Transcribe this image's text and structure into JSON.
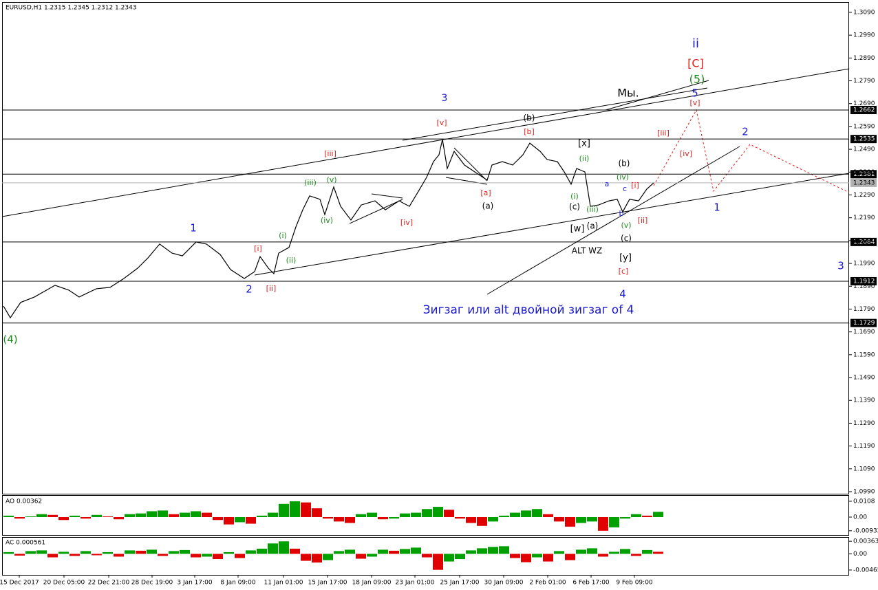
{
  "chart_data": [
    {
      "type": "line",
      "title": "EURUSD,H1  1.2315 1.2345 1.2312 1.2343",
      "color": "#000000",
      "x": [
        5,
        15,
        30,
        50,
        80,
        100,
        115,
        140,
        160,
        180,
        200,
        215,
        232,
        250,
        265,
        285,
        300,
        320,
        335,
        355,
        370,
        378,
        390,
        398,
        405,
        420,
        430,
        440,
        450,
        465,
        472,
        485,
        495,
        510,
        525,
        545,
        560,
        580,
        595,
        610,
        620,
        630,
        638,
        643,
        650,
        660,
        675,
        690,
        708,
        715,
        730,
        745,
        760,
        770,
        785,
        795,
        810,
        820,
        830,
        838,
        850,
        858,
        870,
        885,
        897,
        905,
        915,
        928,
        940,
        950
      ],
      "values": [
        1.1803,
        1.1752,
        1.1819,
        1.1843,
        1.1894,
        1.1873,
        1.1843,
        1.1879,
        1.1885,
        1.1924,
        1.1969,
        1.2014,
        1.2075,
        1.2035,
        1.2023,
        1.2084,
        1.2075,
        1.2029,
        1.1963,
        1.1924,
        1.1954,
        1.202,
        1.1969,
        1.1945,
        1.2035,
        1.206,
        1.215,
        1.2225,
        1.2286,
        1.2271,
        1.2204,
        1.2325,
        1.224,
        1.218,
        1.2246,
        1.2264,
        1.2225,
        1.2264,
        1.224,
        1.2316,
        1.2367,
        1.2436,
        1.2466,
        1.2533,
        1.2406,
        1.2481,
        1.2421,
        1.2391,
        1.2355,
        1.2421,
        1.2436,
        1.2421,
        1.2466,
        1.2517,
        1.2481,
        1.2445,
        1.2436,
        1.2391,
        1.2337,
        1.2406,
        1.2391,
        1.224,
        1.2246,
        1.2264,
        1.2271,
        1.2216,
        1.2271,
        1.2264,
        1.2316,
        1.2343
      ],
      "xlim": [
        3,
        1234
      ],
      "ylim": [
        1.0981,
        1.3135
      ],
      "yticks": [
        {
          "value": 1.309,
          "label": "1.3090"
        },
        {
          "value": 1.299,
          "label": "1.2990"
        },
        {
          "value": 1.289,
          "label": "1.2890"
        },
        {
          "value": 1.279,
          "label": "1.2790"
        },
        {
          "value": 1.269,
          "label": "1.2690"
        },
        {
          "value": 1.259,
          "label": "1.2590"
        },
        {
          "value": 1.249,
          "label": "1.2490"
        },
        {
          "value": 1.239,
          "label": "1.2390"
        },
        {
          "value": 1.229,
          "label": "1.2290"
        },
        {
          "value": 1.219,
          "label": "1.2190"
        },
        {
          "value": 1.209,
          "label": "1.2090"
        },
        {
          "value": 1.199,
          "label": "1.1990"
        },
        {
          "value": 1.189,
          "label": "1.1890"
        },
        {
          "value": 1.179,
          "label": "1.1790"
        },
        {
          "value": 1.169,
          "label": "1.1690"
        },
        {
          "value": 1.159,
          "label": "1.1590"
        },
        {
          "value": 1.149,
          "label": "1.1490"
        },
        {
          "value": 1.139,
          "label": "1.1390"
        },
        {
          "value": 1.129,
          "label": "1.1290"
        },
        {
          "value": 1.119,
          "label": "1.1190"
        },
        {
          "value": 1.109,
          "label": "1.1090"
        },
        {
          "value": 1.099,
          "label": "1.0990"
        }
      ],
      "xticks": [
        {
          "value": 28,
          "label": "15 Dec 2017"
        },
        {
          "value": 93,
          "label": "20 Dec 05:00"
        },
        {
          "value": 158,
          "label": "22 Dec 21:00"
        },
        {
          "value": 221,
          "label": "28 Dec 19:00"
        },
        {
          "value": 283,
          "label": "3 Jan 17:00"
        },
        {
          "value": 346,
          "label": "8 Jan 09:00"
        },
        {
          "value": 412,
          "label": "11 Jan 01:00"
        },
        {
          "value": 476,
          "label": "15 Jan 17:00"
        },
        {
          "value": 540,
          "label": "18 Jan 09:00"
        },
        {
          "value": 603,
          "label": "23 Jan 01:00"
        },
        {
          "value": 668,
          "label": "25 Jan 17:00"
        },
        {
          "value": 732,
          "label": "30 Jan 09:00"
        },
        {
          "value": 796,
          "label": "2 Feb 01:00"
        },
        {
          "value": 859,
          "label": "6 Feb 17:00"
        },
        {
          "value": 922,
          "label": "9 Feb 09:00"
        }
      ],
      "levels": [
        1.2662,
        1.2535,
        1.2381,
        1.2084,
        1.1912,
        1.1729
      ],
      "level_color": "#000000",
      "current": 1.2343,
      "current_color": "#b0b0b0",
      "annotations": [
        {
          "text": "ii",
          "color": "#1a1acc"
        },
        {
          "text": "[C]",
          "color": "#e0201b"
        },
        {
          "text": "(5)",
          "color": "#1a8a1a"
        },
        {
          "text": "5",
          "color": "#1a1acc"
        },
        {
          "text": "[v]",
          "color": "#e0201b"
        },
        {
          "text": "Мы.",
          "color": "#000000"
        },
        {
          "text": "3",
          "color": "#1a1acc"
        },
        {
          "text": "[v]",
          "color": "#e0201b"
        },
        {
          "text": "(b)",
          "color": "#000000"
        },
        {
          "text": "[b]",
          "color": "#e0201b"
        },
        {
          "text": "[iii]",
          "color": "#e0201b"
        },
        {
          "text": "[x]",
          "color": "#000000"
        },
        {
          "text": "(ii)",
          "color": "#1a8a1a"
        },
        {
          "text": "[iii]",
          "color": "#e0201b"
        },
        {
          "text": "[iv]",
          "color": "#e0201b"
        },
        {
          "text": "2",
          "color": "#1a1acc"
        },
        {
          "text": "(b)",
          "color": "#000000"
        },
        {
          "text": "(iv)",
          "color": "#1a8a1a"
        },
        {
          "text": "a",
          "color": "#1a1acc"
        },
        {
          "text": "c",
          "color": "#1a1acc"
        },
        {
          "text": "[i]",
          "color": "#e0201b"
        },
        {
          "text": "(iii)",
          "color": "#1a8a1a"
        },
        {
          "text": "(v)",
          "color": "#1a8a1a"
        },
        {
          "text": "(iv)",
          "color": "#1a8a1a"
        },
        {
          "text": "[a]",
          "color": "#e0201b"
        },
        {
          "text": "(a)",
          "color": "#000000"
        },
        {
          "text": "(i)",
          "color": "#1a8a1a"
        },
        {
          "text": "(c)",
          "color": "#000000"
        },
        {
          "text": "(iii)",
          "color": "#1a8a1a"
        },
        {
          "text": "b",
          "color": "#1a1acc"
        },
        {
          "text": "[ii]",
          "color": "#e0201b"
        },
        {
          "text": "(v)",
          "color": "#1a8a1a"
        },
        {
          "text": "[iv]",
          "color": "#e0201b"
        },
        {
          "text": "[w]",
          "color": "#000000"
        },
        {
          "text": "(a)",
          "color": "#000000"
        },
        {
          "text": "(c)",
          "color": "#000000"
        },
        {
          "text": "ALT WZ",
          "color": "#000000"
        },
        {
          "text": "[y]",
          "color": "#000000"
        },
        {
          "text": "[c]",
          "color": "#e0201b"
        },
        {
          "text": "4",
          "color": "#1a1acc"
        },
        {
          "text": "1",
          "color": "#1a1acc"
        },
        {
          "text": "[i]",
          "color": "#e0201b"
        },
        {
          "text": "(i)",
          "color": "#1a8a1a"
        },
        {
          "text": "(ii)",
          "color": "#1a8a1a"
        },
        {
          "text": "2",
          "color": "#1a1acc"
        },
        {
          "text": "[ii]",
          "color": "#e0201b"
        },
        {
          "text": "1",
          "color": "#1a1acc"
        },
        {
          "text": "3",
          "color": "#1a1acc"
        },
        {
          "text": "Зигзаг или alt двойной зигзаг of 4",
          "color": "#1a1acc"
        },
        {
          "text": "(4)",
          "color": "#1a8a1a"
        }
      ]
    },
    {
      "type": "bar",
      "title": "AO 0.00362",
      "up_color": "#00a000",
      "down_color": "#e00000",
      "values": [
        0.001,
        -0.001,
        0.0005,
        0.002,
        0.0015,
        -0.002,
        0.001,
        -0.001,
        0.0015,
        0.0005,
        -0.0015,
        0.002,
        0.0025,
        0.004,
        0.0045,
        0.002,
        0.003,
        0.004,
        0.003,
        -0.002,
        -0.005,
        -0.0035,
        -0.0045,
        0.001,
        0.003,
        0.009,
        0.0108,
        0.01,
        0.006,
        -0.001,
        -0.003,
        -0.004,
        0.002,
        0.003,
        -0.0015,
        -0.001,
        0.0025,
        0.003,
        0.0055,
        0.007,
        0.005,
        -0.001,
        -0.004,
        -0.006,
        -0.003,
        0.001,
        0.003,
        0.0045,
        0.0055,
        0.002,
        -0.003,
        -0.0065,
        -0.004,
        -0.003,
        -0.0093,
        -0.007,
        -0.001,
        0.002,
        0.001,
        0.0036
      ],
      "ylim": [
        -0.0122,
        0.015
      ],
      "yticks": [
        0.0108,
        {
          "value": 0,
          "label": "0.00"
        },
        -0.00932
      ]
    },
    {
      "type": "bar",
      "title": "AC 0.000561",
      "up_color": "#00a000",
      "down_color": "#e00000",
      "values": [
        0.0005,
        -0.0005,
        0.0008,
        0.001,
        -0.001,
        0.0006,
        -0.0006,
        0.0008,
        -0.0004,
        0.0005,
        -0.0008,
        0.001,
        0.0009,
        0.0012,
        -0.0006,
        0.0008,
        0.0011,
        -0.001,
        -0.0008,
        -0.0015,
        0.0005,
        -0.0012,
        0.001,
        0.0015,
        0.003,
        0.0036,
        0.0015,
        -0.002,
        -0.0025,
        -0.0018,
        0.0008,
        0.0012,
        -0.0014,
        -0.0008,
        0.0012,
        0.0009,
        0.0014,
        0.0018,
        -0.001,
        -0.0046,
        -0.0022,
        -0.0015,
        0.001,
        0.0016,
        0.002,
        0.0022,
        -0.0012,
        -0.0024,
        -0.001,
        -0.0022,
        0.0008,
        -0.0018,
        0.0012,
        0.0016,
        -0.0008,
        0.0006,
        0.0014,
        -0.0006,
        0.0011,
        0.0006
      ],
      "ylim": [
        -0.00605,
        0.00484
      ],
      "yticks": [
        0.00363,
        {
          "value": 0,
          "label": "0.00"
        },
        -0.00465
      ]
    }
  ]
}
